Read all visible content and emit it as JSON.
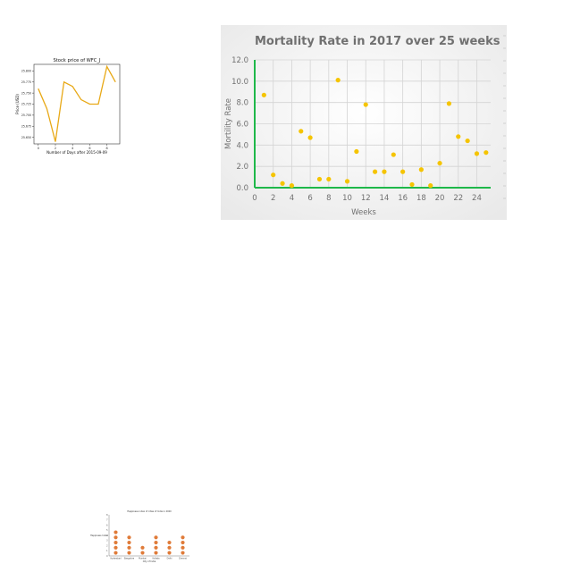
{
  "chart_data": [
    {
      "type": "line",
      "title": "Stock price of WFC_J",
      "xlabel": "Number of Days after 2015-09-09",
      "ylabel": "Price (USD)",
      "x": [
        0,
        1,
        2,
        3,
        4,
        5,
        6,
        7,
        8,
        9
      ],
      "values": [
        25.76,
        25.715,
        25.64,
        25.775,
        25.765,
        25.735,
        25.725,
        25.725,
        25.81,
        25.775
      ],
      "xticks": [
        "0",
        "2",
        "4",
        "6",
        "8"
      ],
      "xtick_values": [
        0,
        2,
        4,
        6,
        8
      ],
      "yticks": [
        "25.650",
        "25.675",
        "25.700",
        "25.725",
        "25.750",
        "25.775",
        "25.800"
      ],
      "ytick_values": [
        25.65,
        25.675,
        25.7,
        25.725,
        25.75,
        25.775,
        25.8
      ],
      "xlim": [
        -0.5,
        9.5
      ],
      "ylim": [
        25.635,
        25.815
      ],
      "color": "#e8a917",
      "grid": false
    },
    {
      "type": "scatter",
      "title": "Mortality  Rate  in 2017 over 25 weeks",
      "xlabel": "Weeks",
      "ylabel": "Mortility  Rate",
      "x": [
        1,
        2,
        3,
        4,
        5,
        6,
        7,
        8,
        9,
        10,
        11,
        12,
        13,
        14,
        15,
        16,
        17,
        18,
        19,
        20,
        21,
        22,
        23,
        24,
        25
      ],
      "values": [
        8.7,
        1.2,
        0.4,
        0.2,
        5.3,
        4.7,
        0.8,
        0.8,
        10.1,
        0.6,
        3.4,
        7.8,
        1.5,
        1.5,
        3.1,
        1.5,
        0.3,
        1.7,
        0.2,
        2.3,
        7.9,
        4.8,
        4.4,
        3.2,
        3.3
      ],
      "xticks": [
        "0",
        "2",
        "4",
        "6",
        "8",
        "10",
        "12",
        "14",
        "16",
        "18",
        "20",
        "22",
        "24"
      ],
      "xtick_values": [
        0,
        2,
        4,
        6,
        8,
        10,
        12,
        14,
        16,
        18,
        20,
        22,
        24
      ],
      "yticks": [
        "0.0",
        "2.0",
        "4.0",
        "6.0",
        "8.0",
        "10.0",
        "12.0"
      ],
      "ytick_values": [
        0,
        2,
        4,
        6,
        8,
        10,
        12
      ],
      "xlim": [
        0,
        25.5
      ],
      "ylim": [
        0,
        12
      ],
      "grid": true,
      "point_color": "#f5c400",
      "axis_color": "#1fb84a"
    },
    {
      "type": "scatter",
      "title": "Happiness index of cities of India in 2020",
      "xlabel": "City of India",
      "ylabel": "Happiness Index",
      "categories": [
        "Hyderabad",
        "Bangalore",
        "Mumbai",
        "Kolkata",
        "Delhi",
        "Chennai"
      ],
      "values": [
        5,
        4,
        2,
        4,
        3,
        4
      ],
      "yticks": [
        "0",
        "1",
        "2",
        "3",
        "4",
        "5",
        "6",
        "7",
        "8"
      ],
      "ytick_values": [
        0,
        1,
        2,
        3,
        4,
        5,
        6,
        7,
        8
      ],
      "ylim": [
        0,
        8
      ],
      "point_color": "#e07b39"
    }
  ]
}
